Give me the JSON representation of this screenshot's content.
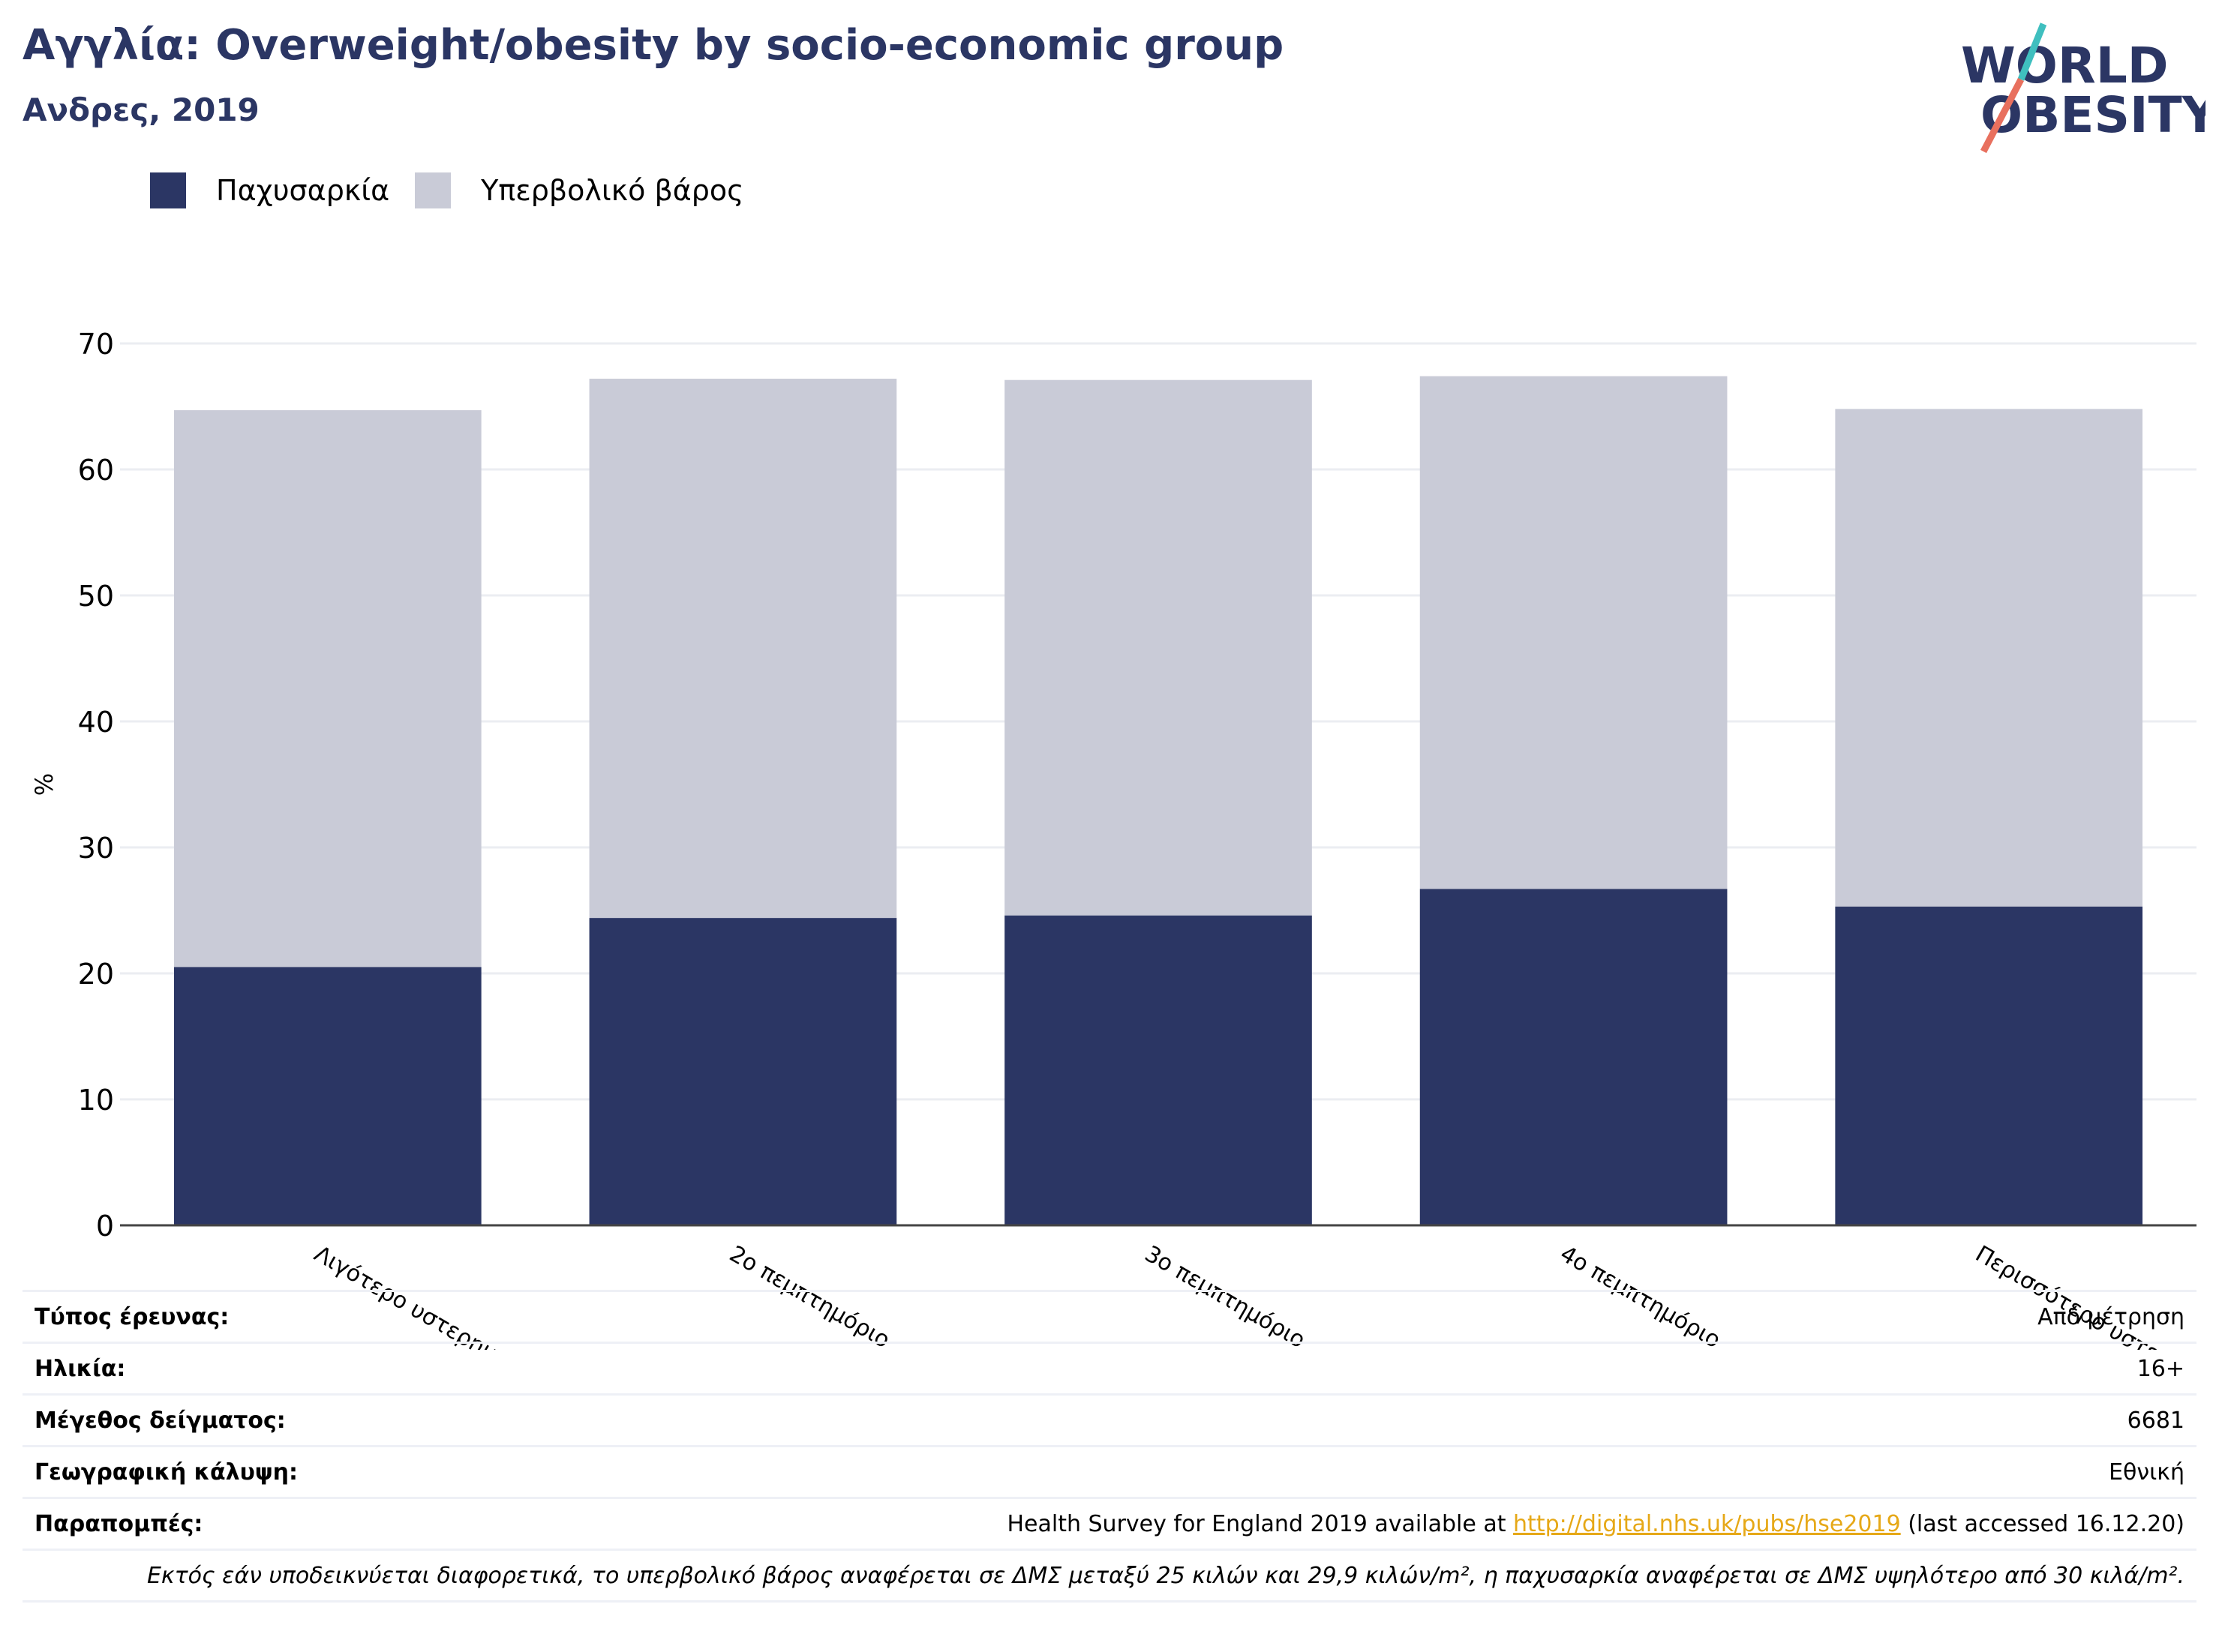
{
  "header": {
    "title": "Αγγλία: Overweight/obesity by socio-economic group",
    "subtitle": "Ανδρες, 2019"
  },
  "logo": {
    "line1": "WORLD",
    "line2": "OBESITY"
  },
  "colors": {
    "obesity": "#2b3664",
    "overweight": "#c9cbd7",
    "title": "#2b3664",
    "link": "#e6a817",
    "slash_teal": "#3fbfbf",
    "slash_coral": "#e8705e"
  },
  "chart_data": {
    "type": "bar",
    "stacked": true,
    "categories": [
      "Λιγότερο υστερημένα",
      "2ο πεμπτημόριο",
      "3ο πεμπτημόριο",
      "4ο πεμπτημόριο",
      "Περισσότερο υστερημένα"
    ],
    "series": [
      {
        "name": "Παχυσαρκία",
        "values": [
          20.5,
          24.4,
          24.6,
          26.7,
          25.3
        ]
      },
      {
        "name": "Υπερβολικό βάρος",
        "values": [
          44.2,
          42.8,
          42.5,
          40.7,
          39.5
        ]
      }
    ],
    "ylabel": "%",
    "ylim": [
      0,
      70
    ],
    "yticks": [
      0,
      10,
      20,
      30,
      40,
      50,
      60,
      70
    ],
    "grid": true,
    "legend": "top-left"
  },
  "info": {
    "rows": [
      {
        "key": "Τύπος έρευνας:",
        "value": "Από μέτρηση"
      },
      {
        "key": "Ηλικία:",
        "value": "16+"
      },
      {
        "key": "Μέγεθος δείγματος:",
        "value": "6681"
      },
      {
        "key": "Γεωγραφική κάλυψη:",
        "value": "Εθνική"
      }
    ],
    "references": {
      "key": "Παραπομπές:",
      "prefix": "Health Survey for England 2019 available at ",
      "link": "http://digital.nhs.uk/pubs/hse2019",
      "suffix": " (last accessed 16.12.20)"
    },
    "footnote": "Εκτός εάν υποδεικνύεται διαφορετικά, το υπερβολικό βάρος αναφέρεται σε ΔΜΣ μεταξύ 25 κιλών και 29,9 κιλών/m², η παχυσαρκία αναφέρεται σε ΔΜΣ υψηλότερο από 30 κιλά/m²."
  }
}
